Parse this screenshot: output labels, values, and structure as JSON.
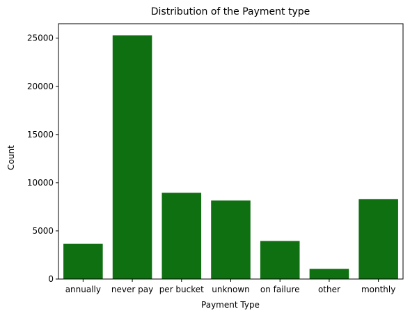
{
  "chart_data": {
    "type": "bar",
    "title": "Distribution of the Payment type",
    "xlabel": "Payment Type",
    "ylabel": "Count",
    "categories": [
      "annually",
      "never pay",
      "per bucket",
      "unknown",
      "on failure",
      "other",
      "monthly"
    ],
    "values": [
      3650,
      25300,
      8950,
      8150,
      3950,
      1050,
      8300
    ],
    "ylim": [
      0,
      26500
    ],
    "yticks": [
      "0",
      "5000",
      "10000",
      "15000",
      "20000",
      "25000"
    ],
    "bar_color": "#0e7010",
    "grid": false,
    "legend": "none"
  }
}
